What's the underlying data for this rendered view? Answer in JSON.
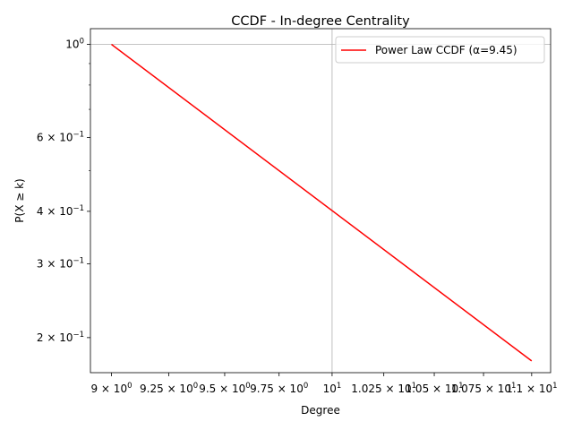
{
  "chart_data": {
    "type": "line",
    "title": "CCDF - In-degree Centrality",
    "xlabel": "Degree",
    "ylabel": "P(X ≥ k)",
    "xscale": "log",
    "yscale": "log",
    "xlim": [
      8.91,
      11.1
    ],
    "ylim": [
      0.165,
      1.09
    ],
    "grid": "major only",
    "legend_position": "top-right",
    "x_ticks": [
      {
        "value": 9,
        "label_base": "9 × 10",
        "label_exp": "0"
      },
      {
        "value": 9.25,
        "label_base": "9.25 × 10",
        "label_exp": "0"
      },
      {
        "value": 9.5,
        "label_base": "9.5 × 10",
        "label_exp": "0"
      },
      {
        "value": 9.75,
        "label_base": "9.75 × 10",
        "label_exp": "0"
      },
      {
        "value": 10,
        "label_base": "10",
        "label_exp": "1"
      },
      {
        "value": 10.25,
        "label_base": "1.025 × 10",
        "label_exp": "1"
      },
      {
        "value": 10.5,
        "label_base": "1.05 × 10",
        "label_exp": "1"
      },
      {
        "value": 10.75,
        "label_base": "1.075 × 10",
        "label_exp": "1"
      },
      {
        "value": 11,
        "label_base": "1.1 × 10",
        "label_exp": "1"
      }
    ],
    "y_ticks": [
      {
        "value": 1.0,
        "label_base": "10",
        "label_exp": "0"
      },
      {
        "value": 0.6,
        "label_base": "6 × 10",
        "label_exp": "−1"
      },
      {
        "value": 0.4,
        "label_base": "4 × 10",
        "label_exp": "−1"
      },
      {
        "value": 0.3,
        "label_base": "3 × 10",
        "label_exp": "−1"
      },
      {
        "value": 0.2,
        "label_base": "2 × 10",
        "label_exp": "−1"
      }
    ],
    "y_minor_ticks": [
      0.9,
      0.8,
      0.7,
      0.5
    ],
    "series": [
      {
        "name": "Power Law CCDF (α=9.45)",
        "color": "#ff0000",
        "x": [
          9,
          11
        ],
        "y": [
          1.0,
          0.176
        ]
      }
    ]
  }
}
